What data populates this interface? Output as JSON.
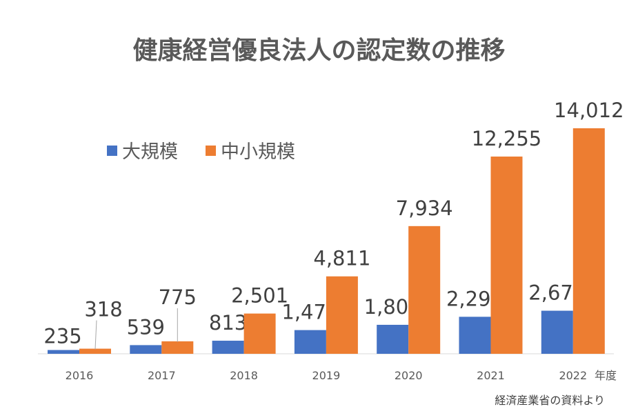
{
  "chart_data": {
    "type": "bar",
    "title": "健康経営優良法人の認定数の推移",
    "categories": [
      "2016",
      "2017",
      "2018",
      "2019",
      "2020",
      "2021",
      "2022"
    ],
    "xlabel": "年度",
    "series": [
      {
        "name": "大規模",
        "color": "#4472C4",
        "values": [
          235,
          539,
          813,
          1473,
          1801,
          2299,
          2676
        ]
      },
      {
        "name": "中小規模",
        "color": "#ED7D31",
        "values": [
          318,
          775,
          2501,
          4811,
          7934,
          12255,
          14012
        ]
      }
    ],
    "ylim": [
      0,
      14012
    ],
    "grid": false,
    "legend": "top-left",
    "data_labels": true
  },
  "source": "経済産業省の資料より"
}
